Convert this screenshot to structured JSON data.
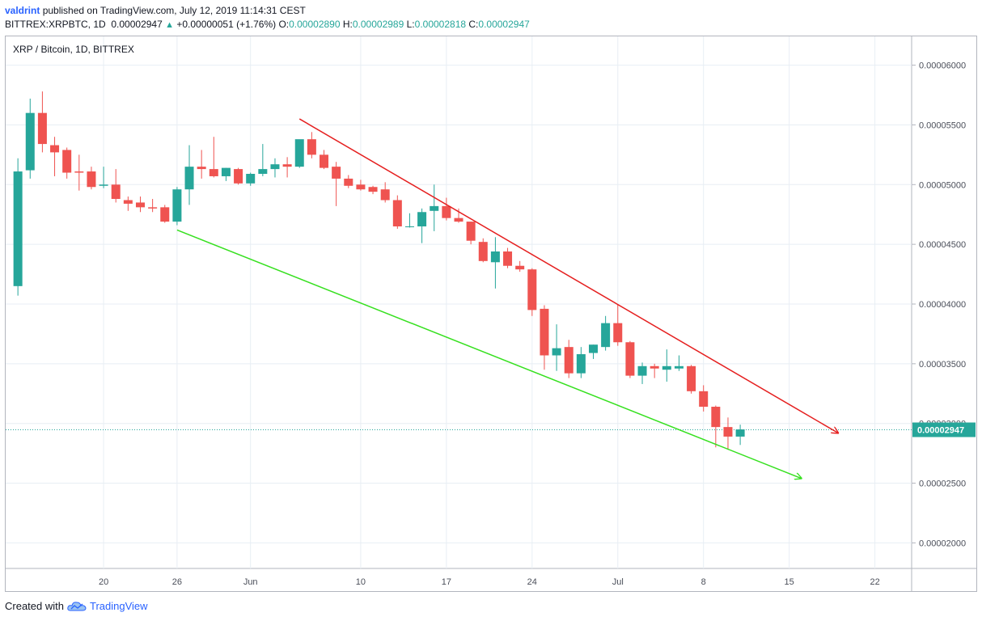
{
  "header": {
    "user": "valdrint",
    "published_text": "published on TradingView.com, July 12, 2019 11:14:31 CEST",
    "symbol": "BITTREX:XRPBTC, 1D",
    "last": "0.00002947",
    "change_arrow": "▲",
    "change": "+0.00000051 (+1.76%)",
    "o_label": "O:",
    "o": "0.00002890",
    "h_label": "H:",
    "h": "0.00002989",
    "l_label": "L:",
    "l": "0.00002818",
    "c_label": "C:",
    "c": "0.00002947"
  },
  "footer": {
    "created_with": "Created with",
    "brand": "TradingView",
    "logo_icon": "tradingview-cloud-icon"
  },
  "colors": {
    "up": "#26a69a",
    "down": "#ef5350",
    "resistance_line": "#e51f1f",
    "support_line": "#36e01f",
    "grid": "#e8eef4",
    "price_line": "#26a69a"
  },
  "chart_data": {
    "type": "candlestick",
    "title": "XRP / Bitcoin, 1D, BITTREX",
    "x_ticks": [
      {
        "label": "20",
        "date": "2019-05-20"
      },
      {
        "label": "26",
        "date": "2019-05-26"
      },
      {
        "label": "Jun",
        "date": "2019-06-01"
      },
      {
        "label": "10",
        "date": "2019-06-10"
      },
      {
        "label": "17",
        "date": "2019-06-17"
      },
      {
        "label": "24",
        "date": "2019-06-24"
      },
      {
        "label": "Jul",
        "date": "2019-07-01"
      },
      {
        "label": "8",
        "date": "2019-07-08"
      },
      {
        "label": "15",
        "date": "2019-07-15"
      },
      {
        "label": "22",
        "date": "2019-07-22"
      }
    ],
    "y_ticks": [
      "0.00006000",
      "0.00005500",
      "0.00005000",
      "0.00004500",
      "0.00004000",
      "0.00003500",
      "0.00003000",
      "0.00002500",
      "0.00002000"
    ],
    "ylim": [
      1.786e-05,
      6.241e-05
    ],
    "xlim": [
      "2019-05-12",
      "2019-07-25"
    ],
    "last_price_label": "0.00002947",
    "last_price": 2.947e-05,
    "candles": [
      {
        "date": "2019-05-13",
        "o": 4.15e-05,
        "h": 5.22e-05,
        "l": 4.07e-05,
        "c": 5.11e-05
      },
      {
        "date": "2019-05-14",
        "o": 5.12e-05,
        "h": 5.72e-05,
        "l": 5.05e-05,
        "c": 5.6e-05
      },
      {
        "date": "2019-05-15",
        "o": 5.6e-05,
        "h": 5.78e-05,
        "l": 5.27e-05,
        "c": 5.34e-05
      },
      {
        "date": "2019-05-16",
        "o": 5.33e-05,
        "h": 5.4e-05,
        "l": 5.07e-05,
        "c": 5.27e-05
      },
      {
        "date": "2019-05-17",
        "o": 5.29e-05,
        "h": 5.31e-05,
        "l": 5.05e-05,
        "c": 5.1e-05
      },
      {
        "date": "2019-05-18",
        "o": 5.11e-05,
        "h": 5.25e-05,
        "l": 4.95e-05,
        "c": 5.1e-05
      },
      {
        "date": "2019-05-19",
        "o": 5.11e-05,
        "h": 5.15e-05,
        "l": 4.96e-05,
        "c": 4.98e-05
      },
      {
        "date": "2019-05-20",
        "o": 4.99e-05,
        "h": 5.15e-05,
        "l": 4.97e-05,
        "c": 5e-05
      },
      {
        "date": "2019-05-21",
        "o": 5e-05,
        "h": 5.13e-05,
        "l": 4.85e-05,
        "c": 4.88e-05
      },
      {
        "date": "2019-05-22",
        "o": 4.87e-05,
        "h": 4.9e-05,
        "l": 4.78e-05,
        "c": 4.84e-05
      },
      {
        "date": "2019-05-23",
        "o": 4.85e-05,
        "h": 4.9e-05,
        "l": 4.77e-05,
        "c": 4.81e-05
      },
      {
        "date": "2019-05-24",
        "o": 4.81e-05,
        "h": 4.88e-05,
        "l": 4.77e-05,
        "c": 4.8e-05
      },
      {
        "date": "2019-05-25",
        "o": 4.81e-05,
        "h": 4.83e-05,
        "l": 4.68e-05,
        "c": 4.69e-05
      },
      {
        "date": "2019-05-26",
        "o": 4.69e-05,
        "h": 4.98e-05,
        "l": 4.66e-05,
        "c": 4.96e-05
      },
      {
        "date": "2019-05-27",
        "o": 4.96e-05,
        "h": 5.33e-05,
        "l": 4.83e-05,
        "c": 5.15e-05
      },
      {
        "date": "2019-05-28",
        "o": 5.15e-05,
        "h": 5.29e-05,
        "l": 5.05e-05,
        "c": 5.13e-05
      },
      {
        "date": "2019-05-29",
        "o": 5.13e-05,
        "h": 5.4e-05,
        "l": 5.06e-05,
        "c": 5.07e-05
      },
      {
        "date": "2019-05-30",
        "o": 5.07e-05,
        "h": 5.14e-05,
        "l": 5.03e-05,
        "c": 5.14e-05
      },
      {
        "date": "2019-05-31",
        "o": 5.13e-05,
        "h": 5.14e-05,
        "l": 5e-05,
        "c": 5.01e-05
      },
      {
        "date": "2019-06-01",
        "o": 5.01e-05,
        "h": 5.1e-05,
        "l": 4.99e-05,
        "c": 5.09e-05
      },
      {
        "date": "2019-06-02",
        "o": 5.09e-05,
        "h": 5.34e-05,
        "l": 5.07e-05,
        "c": 5.13e-05
      },
      {
        "date": "2019-06-03",
        "o": 5.13e-05,
        "h": 5.22e-05,
        "l": 5.06e-05,
        "c": 5.17e-05
      },
      {
        "date": "2019-06-04",
        "o": 5.17e-05,
        "h": 5.23e-05,
        "l": 5.06e-05,
        "c": 5.15e-05
      },
      {
        "date": "2019-06-05",
        "o": 5.15e-05,
        "h": 5.36e-05,
        "l": 5.14e-05,
        "c": 5.38e-05
      },
      {
        "date": "2019-06-06",
        "o": 5.38e-05,
        "h": 5.44e-05,
        "l": 5.22e-05,
        "c": 5.25e-05
      },
      {
        "date": "2019-06-07",
        "o": 5.25e-05,
        "h": 5.29e-05,
        "l": 5.13e-05,
        "c": 5.14e-05
      },
      {
        "date": "2019-06-08",
        "o": 5.15e-05,
        "h": 5.19e-05,
        "l": 4.82e-05,
        "c": 5.05e-05
      },
      {
        "date": "2019-06-09",
        "o": 5.05e-05,
        "h": 5.08e-05,
        "l": 4.97e-05,
        "c": 4.99e-05
      },
      {
        "date": "2019-06-10",
        "o": 5e-05,
        "h": 5.04e-05,
        "l": 4.95e-05,
        "c": 4.96e-05
      },
      {
        "date": "2019-06-11",
        "o": 4.98e-05,
        "h": 4.99e-05,
        "l": 4.92e-05,
        "c": 4.94e-05
      },
      {
        "date": "2019-06-12",
        "o": 4.96e-05,
        "h": 5.02e-05,
        "l": 4.85e-05,
        "c": 4.87e-05
      },
      {
        "date": "2019-06-13",
        "o": 4.87e-05,
        "h": 4.91e-05,
        "l": 4.63e-05,
        "c": 4.65e-05
      },
      {
        "date": "2019-06-14",
        "o": 4.65e-05,
        "h": 4.76e-05,
        "l": 4.64e-05,
        "c": 4.65e-05
      },
      {
        "date": "2019-06-15",
        "o": 4.65e-05,
        "h": 4.8e-05,
        "l": 4.51e-05,
        "c": 4.77e-05
      },
      {
        "date": "2019-06-16",
        "o": 4.78e-05,
        "h": 5e-05,
        "l": 4.61e-05,
        "c": 4.82e-05
      },
      {
        "date": "2019-06-17",
        "o": 4.82e-05,
        "h": 4.89e-05,
        "l": 4.7e-05,
        "c": 4.72e-05
      },
      {
        "date": "2019-06-18",
        "o": 4.72e-05,
        "h": 4.8e-05,
        "l": 4.68e-05,
        "c": 4.69e-05
      },
      {
        "date": "2019-06-19",
        "o": 4.69e-05,
        "h": 4.69e-05,
        "l": 4.5e-05,
        "c": 4.53e-05
      },
      {
        "date": "2019-06-20",
        "o": 4.52e-05,
        "h": 4.55e-05,
        "l": 4.35e-05,
        "c": 4.36e-05
      },
      {
        "date": "2019-06-21",
        "o": 4.35e-05,
        "h": 4.56e-05,
        "l": 4.13e-05,
        "c": 4.44e-05
      },
      {
        "date": "2019-06-22",
        "o": 4.44e-05,
        "h": 4.47e-05,
        "l": 4.3e-05,
        "c": 4.32e-05
      },
      {
        "date": "2019-06-23",
        "o": 4.32e-05,
        "h": 4.36e-05,
        "l": 4.27e-05,
        "c": 4.29e-05
      },
      {
        "date": "2019-06-24",
        "o": 4.29e-05,
        "h": 4.3e-05,
        "l": 3.9e-05,
        "c": 3.95e-05
      },
      {
        "date": "2019-06-25",
        "o": 3.96e-05,
        "h": 3.99e-05,
        "l": 3.45e-05,
        "c": 3.57e-05
      },
      {
        "date": "2019-06-26",
        "o": 3.57e-05,
        "h": 3.83e-05,
        "l": 3.44e-05,
        "c": 3.63e-05
      },
      {
        "date": "2019-06-27",
        "o": 3.64e-05,
        "h": 3.7e-05,
        "l": 3.38e-05,
        "c": 3.42e-05
      },
      {
        "date": "2019-06-28",
        "o": 3.42e-05,
        "h": 3.64e-05,
        "l": 3.38e-05,
        "c": 3.58e-05
      },
      {
        "date": "2019-06-29",
        "o": 3.59e-05,
        "h": 3.66e-05,
        "l": 3.54e-05,
        "c": 3.66e-05
      },
      {
        "date": "2019-06-30",
        "o": 3.64e-05,
        "h": 3.9e-05,
        "l": 3.61e-05,
        "c": 3.84e-05
      },
      {
        "date": "2019-07-01",
        "o": 3.84e-05,
        "h": 4e-05,
        "l": 3.65e-05,
        "c": 3.68e-05
      },
      {
        "date": "2019-07-02",
        "o": 3.68e-05,
        "h": 3.69e-05,
        "l": 3.38e-05,
        "c": 3.4e-05
      },
      {
        "date": "2019-07-03",
        "o": 3.4e-05,
        "h": 3.51e-05,
        "l": 3.33e-05,
        "c": 3.48e-05
      },
      {
        "date": "2019-07-04",
        "o": 3.48e-05,
        "h": 3.5e-05,
        "l": 3.38e-05,
        "c": 3.46e-05
      },
      {
        "date": "2019-07-05",
        "o": 3.45e-05,
        "h": 3.62e-05,
        "l": 3.35e-05,
        "c": 3.48e-05
      },
      {
        "date": "2019-07-06",
        "o": 3.46e-05,
        "h": 3.57e-05,
        "l": 3.44e-05,
        "c": 3.48e-05
      },
      {
        "date": "2019-07-07",
        "o": 3.48e-05,
        "h": 3.49e-05,
        "l": 3.25e-05,
        "c": 3.27e-05
      },
      {
        "date": "2019-07-08",
        "o": 3.27e-05,
        "h": 3.32e-05,
        "l": 3.1e-05,
        "c": 3.14e-05
      },
      {
        "date": "2019-07-09",
        "o": 3.14e-05,
        "h": 3.15e-05,
        "l": 2.8e-05,
        "c": 2.97e-05
      },
      {
        "date": "2019-07-10",
        "o": 2.97e-05,
        "h": 3.05e-05,
        "l": 2.78e-05,
        "c": 2.89e-05
      },
      {
        "date": "2019-07-11",
        "o": 2.89e-05,
        "h": 2.99e-05,
        "l": 2.82e-05,
        "c": 2.95e-05
      }
    ],
    "trendlines": [
      {
        "name": "resistance",
        "from": {
          "date": "2019-06-05",
          "price": 5.55e-05
        },
        "to": {
          "date": "2019-07-19",
          "price": 2.92e-05
        },
        "arrow": true
      },
      {
        "name": "support",
        "from": {
          "date": "2019-05-26",
          "price": 4.62e-05
        },
        "to": {
          "date": "2019-07-16",
          "price": 2.54e-05
        },
        "arrow": true
      }
    ],
    "grid": true
  }
}
